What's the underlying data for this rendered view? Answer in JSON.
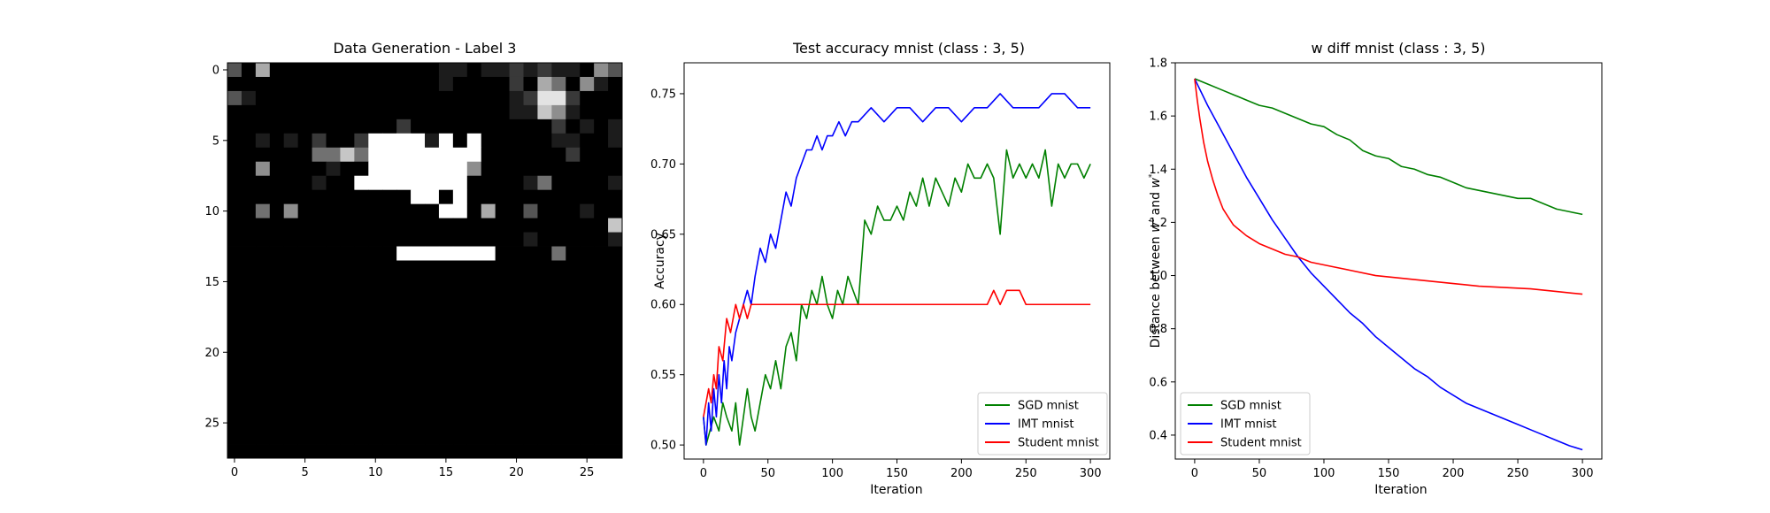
{
  "chart_data": [
    {
      "type": "heatmap",
      "title": "Data Generation - Label 3",
      "xlim": [
        -0.5,
        27.5
      ],
      "ylim": [
        27.5,
        -0.5
      ],
      "xticks": [
        0,
        5,
        10,
        15,
        20,
        25
      ],
      "yticks": [
        0,
        5,
        10,
        15,
        20,
        25
      ],
      "xtick_labels": [
        "0",
        "5",
        "10",
        "15",
        "20",
        "25"
      ],
      "ytick_labels": [
        "0",
        "5",
        "10",
        "15",
        "20",
        "25"
      ],
      "colormap": "gray",
      "grid": false,
      "rows": [
        "3060000000000001101121211053",
        "0000000000000001000020640510",
        "3100000000000000000012882000",
        "0000000000000000000011751000",
        "0000000000002000000000020101",
        "0010102002999919090000011001",
        "0000004474999999990000002000",
        "0050000100999999950000000000",
        "0000001009999999900001400001",
        "0000000000000990900000000000",
        "0040500000000009906003000100",
        "0000000000000000000000000007",
        "0000000000000000000001000001",
        "0000000000009999999000040000",
        "0000000000000000000000000000",
        "0000000000000000000000000000",
        "0000000000000000000000000000",
        "0000000000000000000000000000",
        "0000000000000000000000000000",
        "0000000000000000000000000000",
        "0000000000000000000000000000",
        "0000000000000000000000000000",
        "0000000000000000000000000000",
        "0000000000000000000000000000",
        "0000000000000000000000000000",
        "0000000000000000000000000000",
        "0000000000000000000000000000",
        "0000000000000000000000000000"
      ]
    },
    {
      "type": "line",
      "title": "Test accuracy mnist (class : 3, 5)",
      "xlabel": "Iteration",
      "ylabel": "Accuracy",
      "xlim": [
        -15,
        315
      ],
      "ylim": [
        0.49,
        0.772
      ],
      "xticks": [
        0,
        50,
        100,
        150,
        200,
        250,
        300
      ],
      "yticks": [
        0.5,
        0.55,
        0.6,
        0.65,
        0.7,
        0.75
      ],
      "xtick_labels": [
        "0",
        "50",
        "100",
        "150",
        "200",
        "250",
        "300"
      ],
      "ytick_labels": [
        "0.50",
        "0.55",
        "0.60",
        "0.65",
        "0.70",
        "0.75"
      ],
      "grid": false,
      "legend_position": "lower-right",
      "series": [
        {
          "name": "SGD mnist",
          "color": "#008000",
          "x": [
            0,
            2,
            5,
            8,
            12,
            15,
            18,
            22,
            25,
            28,
            31,
            34,
            37,
            40,
            44,
            48,
            52,
            56,
            60,
            64,
            68,
            72,
            76,
            80,
            84,
            88,
            92,
            96,
            100,
            104,
            108,
            112,
            116,
            120,
            125,
            130,
            135,
            140,
            145,
            150,
            155,
            160,
            165,
            170,
            175,
            180,
            185,
            190,
            195,
            200,
            205,
            210,
            215,
            220,
            225,
            230,
            235,
            240,
            245,
            250,
            255,
            260,
            265,
            270,
            275,
            280,
            285,
            290,
            295,
            300
          ],
          "y": [
            0.52,
            0.5,
            0.51,
            0.52,
            0.51,
            0.53,
            0.52,
            0.51,
            0.53,
            0.5,
            0.52,
            0.54,
            0.52,
            0.51,
            0.53,
            0.55,
            0.54,
            0.56,
            0.54,
            0.57,
            0.58,
            0.56,
            0.6,
            0.59,
            0.61,
            0.6,
            0.62,
            0.6,
            0.59,
            0.61,
            0.6,
            0.62,
            0.61,
            0.6,
            0.66,
            0.65,
            0.67,
            0.66,
            0.66,
            0.67,
            0.66,
            0.68,
            0.67,
            0.69,
            0.67,
            0.69,
            0.68,
            0.67,
            0.69,
            0.68,
            0.7,
            0.69,
            0.69,
            0.7,
            0.69,
            0.65,
            0.71,
            0.69,
            0.7,
            0.69,
            0.7,
            0.69,
            0.71,
            0.67,
            0.7,
            0.69,
            0.7,
            0.7,
            0.69,
            0.7
          ]
        },
        {
          "name": "IMT mnist",
          "color": "#0000ff",
          "x": [
            0,
            2,
            4,
            6,
            8,
            10,
            12,
            14,
            16,
            18,
            20,
            22,
            25,
            28,
            31,
            34,
            37,
            40,
            44,
            48,
            52,
            56,
            60,
            64,
            68,
            72,
            76,
            80,
            84,
            88,
            92,
            96,
            100,
            105,
            110,
            115,
            120,
            130,
            140,
            150,
            160,
            170,
            180,
            190,
            200,
            210,
            220,
            230,
            240,
            250,
            260,
            270,
            280,
            290,
            300
          ],
          "y": [
            0.52,
            0.5,
            0.53,
            0.51,
            0.54,
            0.52,
            0.55,
            0.53,
            0.56,
            0.54,
            0.57,
            0.56,
            0.58,
            0.59,
            0.6,
            0.61,
            0.6,
            0.62,
            0.64,
            0.63,
            0.65,
            0.64,
            0.66,
            0.68,
            0.67,
            0.69,
            0.7,
            0.71,
            0.71,
            0.72,
            0.71,
            0.72,
            0.72,
            0.73,
            0.72,
            0.73,
            0.73,
            0.74,
            0.73,
            0.74,
            0.74,
            0.73,
            0.74,
            0.74,
            0.73,
            0.74,
            0.74,
            0.75,
            0.74,
            0.74,
            0.74,
            0.75,
            0.75,
            0.74,
            0.74
          ]
        },
        {
          "name": "Student mnist",
          "color": "#ff0000",
          "x": [
            0,
            2,
            4,
            6,
            8,
            10,
            12,
            15,
            18,
            21,
            25,
            28,
            31,
            34,
            37,
            40,
            50,
            100,
            150,
            200,
            220,
            225,
            230,
            235,
            240,
            245,
            250,
            300
          ],
          "y": [
            0.52,
            0.53,
            0.54,
            0.53,
            0.55,
            0.54,
            0.57,
            0.56,
            0.59,
            0.58,
            0.6,
            0.59,
            0.6,
            0.59,
            0.6,
            0.6,
            0.6,
            0.6,
            0.6,
            0.6,
            0.6,
            0.61,
            0.6,
            0.61,
            0.61,
            0.61,
            0.6,
            0.6
          ]
        }
      ]
    },
    {
      "type": "line",
      "title": "w diff mnist (class : 3, 5)",
      "xlabel": "Iteration",
      "ylabel": "Distance between w^t and w^*",
      "ylabel_prefix": "Distance between ",
      "ylabel_w1": "w",
      "ylabel_sup1": "t",
      "ylabel_and": " and ",
      "ylabel_w2": "w",
      "ylabel_sup2": "*",
      "xlim": [
        -15,
        315
      ],
      "ylim": [
        0.31,
        1.8
      ],
      "xticks": [
        0,
        50,
        100,
        150,
        200,
        250,
        300
      ],
      "yticks": [
        0.4,
        0.6,
        0.8,
        1.0,
        1.2,
        1.4,
        1.6,
        1.8
      ],
      "xtick_labels": [
        "0",
        "50",
        "100",
        "150",
        "200",
        "250",
        "300"
      ],
      "ytick_labels": [
        "0.4",
        "0.6",
        "0.8",
        "1.0",
        "1.2",
        "1.4",
        "1.6",
        "1.8"
      ],
      "grid": false,
      "legend_position": "lower-left",
      "series": [
        {
          "name": "SGD mnist",
          "color": "#008000",
          "x": [
            0,
            10,
            20,
            30,
            40,
            50,
            60,
            70,
            80,
            90,
            100,
            110,
            120,
            130,
            140,
            150,
            160,
            170,
            180,
            190,
            200,
            210,
            220,
            230,
            240,
            250,
            260,
            270,
            280,
            290,
            300
          ],
          "y": [
            1.74,
            1.72,
            1.7,
            1.68,
            1.66,
            1.64,
            1.63,
            1.61,
            1.59,
            1.57,
            1.56,
            1.53,
            1.51,
            1.47,
            1.45,
            1.44,
            1.41,
            1.4,
            1.38,
            1.37,
            1.35,
            1.33,
            1.32,
            1.31,
            1.3,
            1.29,
            1.29,
            1.27,
            1.25,
            1.24,
            1.23
          ]
        },
        {
          "name": "IMT mnist",
          "color": "#0000ff",
          "x": [
            0,
            10,
            20,
            30,
            40,
            50,
            60,
            70,
            80,
            90,
            100,
            110,
            120,
            130,
            140,
            150,
            160,
            170,
            180,
            190,
            200,
            210,
            220,
            230,
            240,
            250,
            260,
            270,
            280,
            290,
            300
          ],
          "y": [
            1.74,
            1.64,
            1.55,
            1.46,
            1.37,
            1.29,
            1.21,
            1.14,
            1.07,
            1.01,
            0.96,
            0.91,
            0.86,
            0.82,
            0.77,
            0.73,
            0.69,
            0.65,
            0.62,
            0.58,
            0.55,
            0.52,
            0.5,
            0.48,
            0.46,
            0.44,
            0.42,
            0.4,
            0.38,
            0.36,
            0.345
          ]
        },
        {
          "name": "Student mnist",
          "color": "#ff0000",
          "x": [
            0,
            2,
            4,
            7,
            10,
            14,
            18,
            22,
            26,
            30,
            35,
            40,
            50,
            60,
            70,
            80,
            90,
            100,
            120,
            140,
            160,
            180,
            200,
            220,
            240,
            260,
            280,
            300
          ],
          "y": [
            1.74,
            1.66,
            1.59,
            1.5,
            1.43,
            1.36,
            1.3,
            1.25,
            1.22,
            1.19,
            1.17,
            1.15,
            1.12,
            1.1,
            1.08,
            1.07,
            1.05,
            1.04,
            1.02,
            1.0,
            0.99,
            0.98,
            0.97,
            0.96,
            0.955,
            0.95,
            0.94,
            0.93
          ]
        }
      ]
    }
  ]
}
